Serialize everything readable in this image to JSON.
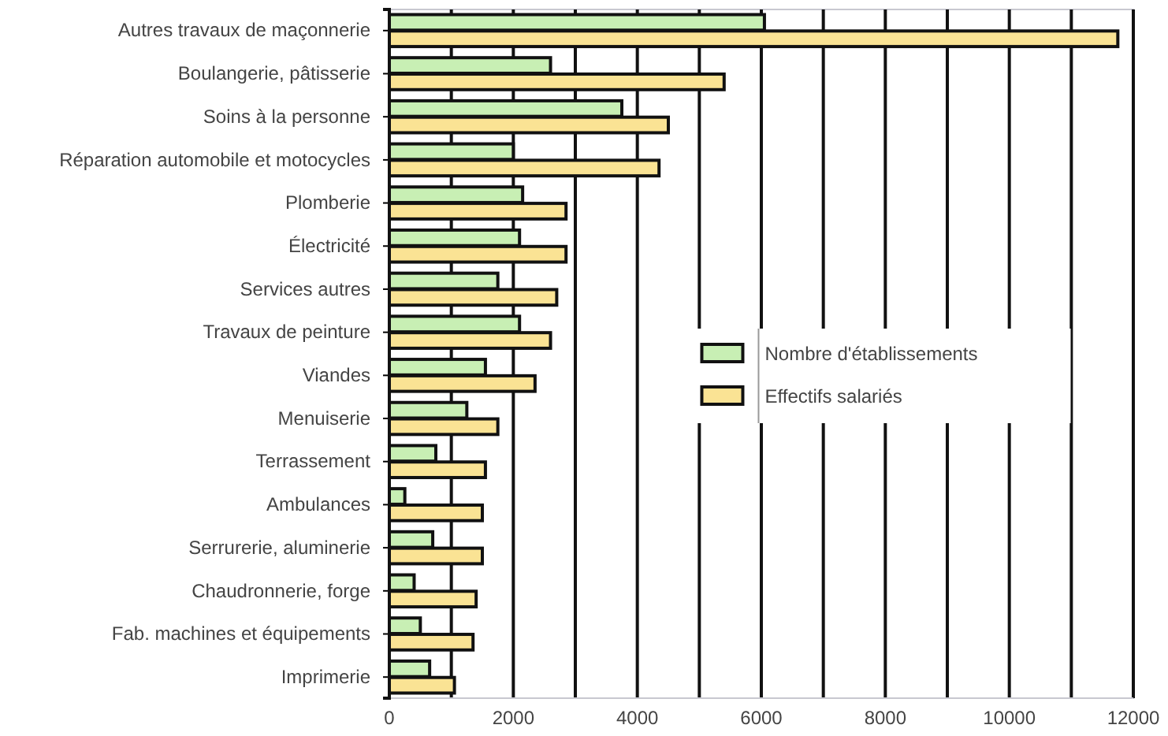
{
  "chart_data": {
    "type": "bar",
    "orientation": "horizontal",
    "categories": [
      "Autres travaux de maçonnerie",
      "Boulangerie, pâtisserie",
      "Soins à la personne",
      "Réparation automobile et motocycles",
      "Plomberie",
      "Électricité",
      "Services autres",
      "Travaux de peinture",
      "Viandes",
      "Menuiserie",
      "Terrassement",
      "Ambulances",
      "Serrurerie, aluminerie",
      "Chaudronnerie, forge",
      "Fab. machines et équipements",
      "Imprimerie"
    ],
    "series": [
      {
        "name": "Nombre d'établissements",
        "color": "#c8efb4",
        "values": [
          6050,
          2600,
          3750,
          2000,
          2150,
          2100,
          1750,
          2100,
          1550,
          1250,
          750,
          250,
          700,
          400,
          500,
          650
        ]
      },
      {
        "name": "Effectifs salariés",
        "color": "#fae394",
        "values": [
          11750,
          5400,
          4500,
          4350,
          2850,
          2850,
          2700,
          2600,
          2350,
          1750,
          1550,
          1500,
          1500,
          1400,
          1350,
          1050
        ]
      }
    ],
    "xlim": [
      0,
      12000
    ],
    "xticks": [
      0,
      {
        "value": 1000,
        "label": null
      },
      {
        "value": 2000,
        "label": "2000"
      },
      {
        "value": 3000,
        "label": null
      },
      {
        "value": 4000,
        "label": "4000"
      },
      {
        "value": 5000,
        "label": null
      },
      {
        "value": 6000,
        "label": "6000"
      },
      {
        "value": 7000,
        "label": null
      },
      {
        "value": 8000,
        "label": "8000"
      },
      {
        "value": 9000,
        "label": null
      },
      {
        "value": 10000,
        "label": "10000"
      },
      {
        "value": 11000,
        "label": null
      },
      {
        "value": 12000,
        "label": "12000"
      }
    ],
    "grid": "x",
    "legend": "right"
  }
}
